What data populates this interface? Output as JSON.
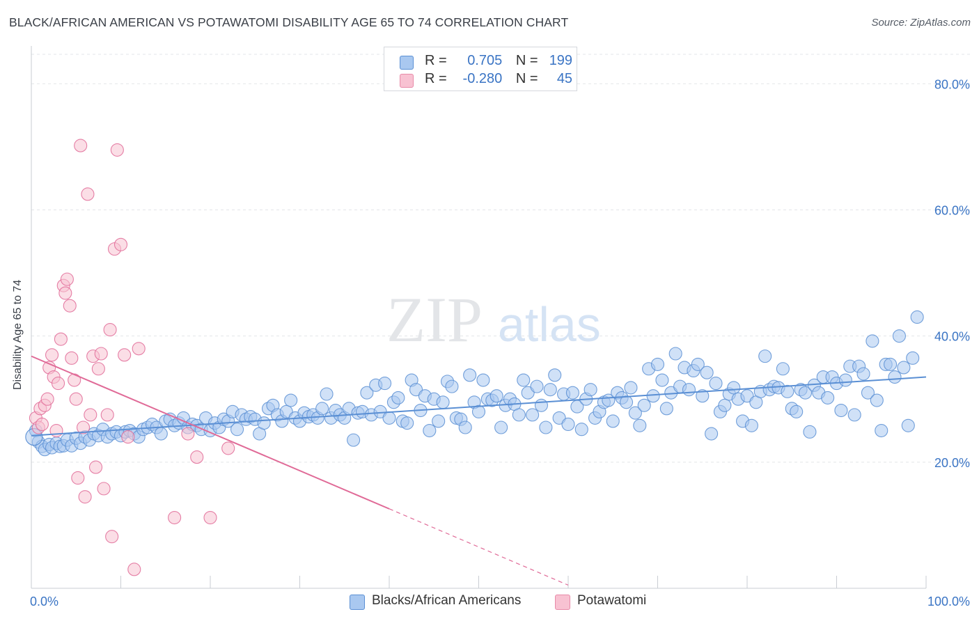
{
  "title": "BLACK/AFRICAN AMERICAN VS POTAWATOMI DISABILITY AGE 65 TO 74 CORRELATION CHART",
  "source": "Source: ZipAtlas.com",
  "watermark": {
    "zip": "ZIP",
    "atlas": "atlas"
  },
  "legend": {
    "r_label": "R =",
    "n_label": "N =",
    "rows": [
      {
        "r": "0.705",
        "n": "199",
        "color": "#a9c8f0",
        "edge": "#5a8fd4"
      },
      {
        "r": "-0.280",
        "n": "45",
        "color": "#f8c2d2",
        "edge": "#e88aa8"
      }
    ]
  },
  "bottom_legend": [
    {
      "label": "Blacks/African Americans",
      "color": "#a9c8f0",
      "edge": "#5a8fd4"
    },
    {
      "label": "Potawatomi",
      "color": "#f8c2d2",
      "edge": "#e88aa8"
    }
  ],
  "chart_data": {
    "type": "scatter",
    "title": "BLACK/AFRICAN AMERICAN VS POTAWATOMI DISABILITY AGE 65 TO 74 CORRELATION CHART",
    "xlabel": "",
    "ylabel": "Disability Age 65 to 74",
    "xlim": [
      0,
      100
    ],
    "ylim": [
      0,
      85
    ],
    "x_tick_labels": [
      "0.0%",
      "100.0%"
    ],
    "y_ticks": [
      20,
      40,
      60,
      80
    ],
    "y_tick_labels": [
      "20.0%",
      "40.0%",
      "60.0%",
      "80.0%"
    ],
    "grid": true,
    "legend_position": "top-center",
    "series": [
      {
        "name": "Blacks/African Americans",
        "color": "#5a8fd4",
        "fill": "#a9c8f0",
        "r": 0.705,
        "n": 199,
        "trend": {
          "x": [
            0,
            100
          ],
          "y": [
            24.2,
            33.5
          ],
          "dashed_from": null
        },
        "points": [
          [
            0.5,
            25.0
          ],
          [
            0.8,
            23.2
          ],
          [
            1.2,
            22.5
          ],
          [
            1.5,
            22.0
          ],
          [
            2.0,
            22.8
          ],
          [
            2.3,
            22.3
          ],
          [
            2.8,
            23.0
          ],
          [
            3.2,
            22.5
          ],
          [
            3.6,
            22.6
          ],
          [
            4.0,
            23.5
          ],
          [
            4.5,
            22.6
          ],
          [
            5.0,
            23.8
          ],
          [
            5.5,
            23.0
          ],
          [
            6.0,
            24.0
          ],
          [
            6.5,
            23.5
          ],
          [
            7.0,
            24.5
          ],
          [
            7.5,
            24.2
          ],
          [
            8.0,
            25.2
          ],
          [
            8.5,
            24.0
          ],
          [
            9.0,
            24.5
          ],
          [
            9.5,
            24.8
          ],
          [
            10.0,
            24.2
          ],
          [
            10.5,
            24.8
          ],
          [
            11.0,
            25.0
          ],
          [
            11.5,
            24.5
          ],
          [
            12.0,
            24.0
          ],
          [
            12.5,
            25.2
          ],
          [
            13.0,
            25.5
          ],
          [
            13.5,
            26.0
          ],
          [
            14.0,
            25.5
          ],
          [
            14.5,
            24.5
          ],
          [
            15.0,
            26.5
          ],
          [
            15.5,
            26.8
          ],
          [
            16.0,
            25.8
          ],
          [
            16.5,
            26.2
          ],
          [
            17.0,
            27.0
          ],
          [
            17.5,
            25.5
          ],
          [
            18.0,
            26.0
          ],
          [
            18.5,
            25.8
          ],
          [
            19.0,
            25.2
          ],
          [
            19.5,
            27.0
          ],
          [
            20.0,
            25.0
          ],
          [
            20.5,
            26.2
          ],
          [
            21.0,
            25.5
          ],
          [
            21.5,
            26.8
          ],
          [
            22.0,
            26.5
          ],
          [
            22.5,
            28.0
          ],
          [
            23.0,
            25.2
          ],
          [
            23.5,
            27.5
          ],
          [
            24.0,
            26.8
          ],
          [
            24.5,
            27.2
          ],
          [
            25.0,
            26.8
          ],
          [
            25.5,
            24.5
          ],
          [
            26.0,
            26.2
          ],
          [
            26.5,
            28.5
          ],
          [
            27.0,
            29.0
          ],
          [
            27.5,
            27.5
          ],
          [
            28.0,
            26.5
          ],
          [
            28.5,
            28.0
          ],
          [
            29.0,
            29.8
          ],
          [
            29.5,
            27.0
          ],
          [
            30.0,
            26.5
          ],
          [
            30.5,
            27.8
          ],
          [
            31.0,
            27.2
          ],
          [
            31.5,
            27.5
          ],
          [
            32.0,
            27.0
          ],
          [
            32.5,
            28.5
          ],
          [
            33.0,
            30.8
          ],
          [
            33.5,
            27.0
          ],
          [
            34.0,
            28.2
          ],
          [
            34.5,
            27.5
          ],
          [
            35.0,
            27.0
          ],
          [
            35.5,
            28.5
          ],
          [
            36.0,
            23.5
          ],
          [
            36.5,
            27.8
          ],
          [
            37.0,
            28.0
          ],
          [
            37.5,
            31.0
          ],
          [
            38.0,
            27.5
          ],
          [
            38.5,
            32.2
          ],
          [
            39.0,
            28.0
          ],
          [
            39.5,
            32.5
          ],
          [
            40.0,
            27.0
          ],
          [
            40.5,
            29.5
          ],
          [
            41.0,
            30.2
          ],
          [
            41.5,
            26.5
          ],
          [
            42.0,
            26.2
          ],
          [
            42.5,
            33.0
          ],
          [
            43.0,
            31.5
          ],
          [
            43.5,
            28.2
          ],
          [
            44.0,
            30.5
          ],
          [
            44.5,
            25.0
          ],
          [
            45.0,
            30.0
          ],
          [
            45.5,
            26.5
          ],
          [
            46.0,
            29.5
          ],
          [
            46.5,
            32.8
          ],
          [
            47.0,
            32.0
          ],
          [
            47.5,
            27.0
          ],
          [
            48.0,
            26.8
          ],
          [
            48.5,
            25.5
          ],
          [
            49.0,
            33.8
          ],
          [
            49.5,
            29.5
          ],
          [
            50.0,
            28.0
          ],
          [
            50.5,
            33.0
          ],
          [
            51.0,
            30.0
          ],
          [
            51.5,
            29.8
          ],
          [
            52.0,
            30.5
          ],
          [
            52.5,
            25.5
          ],
          [
            53.0,
            29.0
          ],
          [
            53.5,
            30.0
          ],
          [
            54.0,
            29.2
          ],
          [
            54.5,
            27.5
          ],
          [
            55.0,
            33.0
          ],
          [
            55.5,
            31.0
          ],
          [
            56.0,
            27.5
          ],
          [
            56.5,
            32.0
          ],
          [
            57.0,
            29.0
          ],
          [
            57.5,
            25.5
          ],
          [
            58.0,
            31.5
          ],
          [
            58.5,
            33.8
          ],
          [
            59.0,
            27.0
          ],
          [
            59.5,
            30.8
          ],
          [
            60.0,
            26.0
          ],
          [
            60.5,
            31.0
          ],
          [
            61.0,
            28.8
          ],
          [
            61.5,
            25.2
          ],
          [
            62.0,
            30.0
          ],
          [
            62.5,
            31.5
          ],
          [
            63.0,
            27.0
          ],
          [
            63.5,
            28.0
          ],
          [
            64.0,
            29.5
          ],
          [
            64.5,
            29.8
          ],
          [
            65.0,
            26.5
          ],
          [
            65.5,
            31.0
          ],
          [
            66.0,
            30.2
          ],
          [
            66.5,
            29.5
          ],
          [
            67.0,
            31.8
          ],
          [
            67.5,
            27.8
          ],
          [
            68.0,
            25.8
          ],
          [
            68.5,
            29.0
          ],
          [
            69.0,
            34.8
          ],
          [
            69.5,
            30.5
          ],
          [
            70.0,
            35.5
          ],
          [
            70.5,
            33.0
          ],
          [
            71.0,
            28.5
          ],
          [
            71.5,
            31.0
          ],
          [
            72.0,
            37.2
          ],
          [
            72.5,
            32.0
          ],
          [
            73.0,
            35.0
          ],
          [
            73.5,
            31.5
          ],
          [
            74.0,
            34.5
          ],
          [
            74.5,
            35.5
          ],
          [
            75.0,
            30.5
          ],
          [
            75.5,
            34.2
          ],
          [
            76.0,
            24.5
          ],
          [
            76.5,
            32.5
          ],
          [
            77.0,
            28.0
          ],
          [
            77.5,
            29.0
          ],
          [
            78.0,
            30.8
          ],
          [
            78.5,
            31.8
          ],
          [
            79.0,
            30.0
          ],
          [
            79.5,
            26.5
          ],
          [
            80.0,
            30.5
          ],
          [
            80.5,
            25.8
          ],
          [
            81.0,
            29.5
          ],
          [
            81.5,
            31.2
          ],
          [
            82.0,
            36.8
          ],
          [
            82.5,
            31.5
          ],
          [
            83.0,
            32.0
          ],
          [
            83.5,
            31.8
          ],
          [
            84.0,
            34.8
          ],
          [
            84.5,
            31.2
          ],
          [
            85.0,
            28.5
          ],
          [
            85.5,
            28.0
          ],
          [
            86.0,
            31.5
          ],
          [
            86.5,
            31.0
          ],
          [
            87.0,
            24.8
          ],
          [
            87.5,
            32.2
          ],
          [
            88.0,
            31.0
          ],
          [
            88.5,
            33.5
          ],
          [
            89.0,
            30.2
          ],
          [
            89.5,
            33.5
          ],
          [
            90.0,
            32.5
          ],
          [
            90.5,
            28.2
          ],
          [
            91.0,
            33.0
          ],
          [
            91.5,
            35.2
          ],
          [
            92.0,
            27.5
          ],
          [
            92.5,
            35.2
          ],
          [
            93.0,
            34.0
          ],
          [
            93.5,
            31.0
          ],
          [
            94.0,
            39.2
          ],
          [
            94.5,
            29.8
          ],
          [
            95.0,
            25.0
          ],
          [
            95.5,
            35.5
          ],
          [
            96.0,
            35.5
          ],
          [
            96.5,
            33.5
          ],
          [
            97.0,
            40.0
          ],
          [
            97.5,
            35.0
          ],
          [
            98.0,
            25.8
          ],
          [
            98.5,
            36.5
          ],
          [
            99.0,
            43.0
          ]
        ]
      },
      {
        "name": "Potawatomi",
        "color": "#e06a97",
        "fill": "#f8c2d2",
        "r": -0.28,
        "n": 45,
        "trend": {
          "x": [
            0,
            60
          ],
          "y": [
            36.8,
            0.5
          ],
          "dashed_from": 40
        },
        "points": [
          [
            0.5,
            27.0
          ],
          [
            0.8,
            25.5
          ],
          [
            1.0,
            28.5
          ],
          [
            1.2,
            26.0
          ],
          [
            1.5,
            29.0
          ],
          [
            1.8,
            30.0
          ],
          [
            2.0,
            35.0
          ],
          [
            2.3,
            37.0
          ],
          [
            2.5,
            33.5
          ],
          [
            2.8,
            25.0
          ],
          [
            3.0,
            32.5
          ],
          [
            3.3,
            39.5
          ],
          [
            3.6,
            48.0
          ],
          [
            3.8,
            46.8
          ],
          [
            4.0,
            49.0
          ],
          [
            4.3,
            44.8
          ],
          [
            4.5,
            36.5
          ],
          [
            4.8,
            33.0
          ],
          [
            5.0,
            30.0
          ],
          [
            5.2,
            17.5
          ],
          [
            5.5,
            70.2
          ],
          [
            5.8,
            25.5
          ],
          [
            6.0,
            14.5
          ],
          [
            6.3,
            62.5
          ],
          [
            6.6,
            27.5
          ],
          [
            6.9,
            36.8
          ],
          [
            7.2,
            19.2
          ],
          [
            7.5,
            34.8
          ],
          [
            7.8,
            37.2
          ],
          [
            8.1,
            15.8
          ],
          [
            8.5,
            27.5
          ],
          [
            8.8,
            41.0
          ],
          [
            9.0,
            8.2
          ],
          [
            9.3,
            53.8
          ],
          [
            9.6,
            69.5
          ],
          [
            10.0,
            54.5
          ],
          [
            10.4,
            37.0
          ],
          [
            10.8,
            24.0
          ],
          [
            11.5,
            3.0
          ],
          [
            12.0,
            38.0
          ],
          [
            16.0,
            11.2
          ],
          [
            17.5,
            24.5
          ],
          [
            18.5,
            20.8
          ],
          [
            20.0,
            11.2
          ],
          [
            22.0,
            22.2
          ]
        ]
      }
    ]
  }
}
